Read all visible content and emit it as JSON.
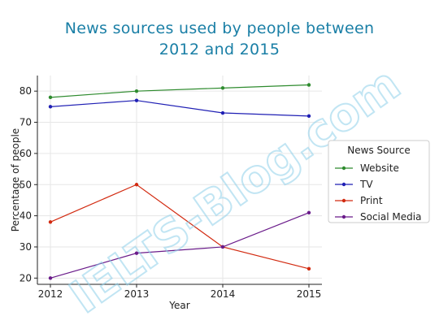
{
  "chart_data": {
    "type": "line",
    "title_line1": "News sources used by people between",
    "title_line2": "2012 and 2015",
    "xlabel": "Year",
    "ylabel": "Percentage of people",
    "x": [
      "2012",
      "2013",
      "2014",
      "2015"
    ],
    "xlim": [
      2012,
      2015
    ],
    "ylim": [
      18,
      85
    ],
    "yticks": [
      20,
      30,
      40,
      50,
      60,
      70,
      80
    ],
    "grid": true,
    "legend_title": "News Source",
    "legend_placement": "right",
    "series": [
      {
        "name": "Website",
        "color": "#2e8b2e",
        "values": [
          78,
          80,
          81,
          82
        ]
      },
      {
        "name": "TV",
        "color": "#1f1fb4",
        "values": [
          75,
          77,
          73,
          72
        ]
      },
      {
        "name": "Print",
        "color": "#d22a10",
        "values": [
          38,
          50,
          30,
          23
        ]
      },
      {
        "name": "Social Media",
        "color": "#6a1b8a",
        "values": [
          20,
          28,
          30,
          41
        ]
      }
    ]
  },
  "watermark": "IELTS-Blog.com"
}
